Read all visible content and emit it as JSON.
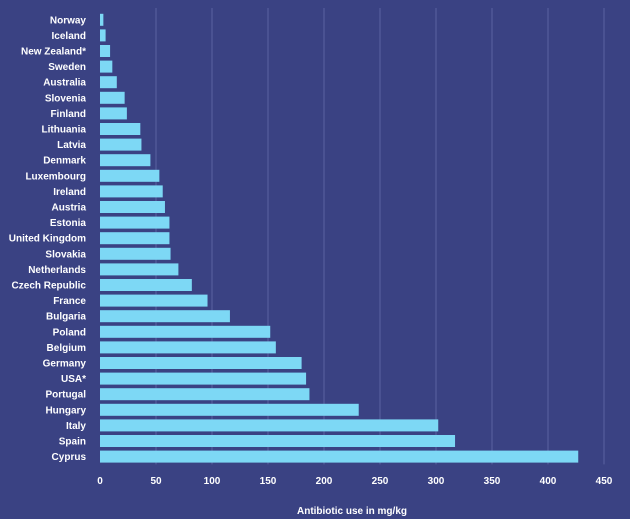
{
  "colors": {
    "background": "#3a4283",
    "bar": "#7dd8f5",
    "grid": "#5a61a0",
    "text": "#ffffff"
  },
  "chart_data": {
    "type": "bar",
    "orientation": "horizontal",
    "categories": [
      "Norway",
      "Iceland",
      "New Zealand*",
      "Sweden",
      "Australia",
      "Slovenia",
      "Finland",
      "Lithuania",
      "Latvia",
      "Denmark",
      "Luxembourg",
      "Ireland",
      "Austria",
      "Estonia",
      "United Kingdom",
      "Slovakia",
      "Netherlands",
      "Czech Republic",
      "France",
      "Bulgaria",
      "Poland",
      "Belgium",
      "Germany",
      "USA*",
      "Portugal",
      "Hungary",
      "Italy",
      "Spain",
      "Cyprus"
    ],
    "values": [
      3,
      5,
      9,
      11,
      15,
      22,
      24,
      36,
      37,
      45,
      53,
      56,
      58,
      62,
      62,
      63,
      70,
      82,
      96,
      116,
      152,
      157,
      180,
      184,
      187,
      231,
      302,
      317,
      427
    ],
    "xlabel": "Antibiotic use in mg/kg",
    "ylabel": "",
    "title": "",
    "xlim": [
      0,
      450
    ],
    "xticks": [
      0,
      50,
      100,
      150,
      200,
      250,
      300,
      350,
      400,
      450
    ],
    "grid": true,
    "legend": "none"
  }
}
